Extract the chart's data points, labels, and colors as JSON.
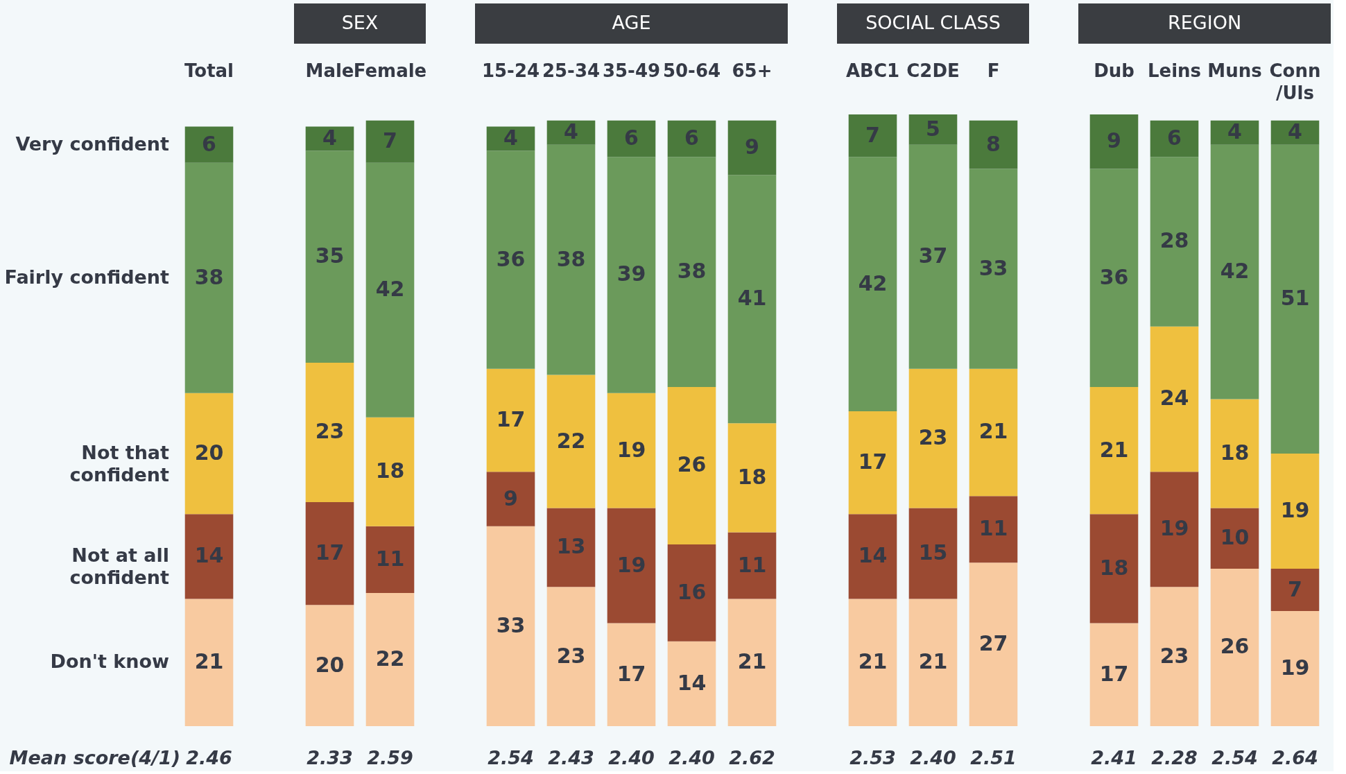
{
  "chart_data": [
    {
      "type": "bar",
      "stacked": true,
      "data_labels": true,
      "legend": "left",
      "categories": [
        "Total"
      ],
      "series": [
        {
          "name": "Don't know",
          "color": "#f8caa0",
          "values": [
            21
          ]
        },
        {
          "name": "Not at all\nconfident",
          "color": "#9b4a32",
          "values": [
            14
          ]
        },
        {
          "name": "Not that\nconfident",
          "color": "#efc03f",
          "values": [
            20
          ]
        },
        {
          "name": "Fairly confident",
          "color": "#6b9a5b",
          "values": [
            38
          ]
        },
        {
          "name": "Very confident",
          "color": "#4b7a3c",
          "values": [
            6
          ]
        }
      ],
      "annotations": [
        "Mean score(4/1)",
        "2.46"
      ]
    },
    {
      "type": "bar",
      "stacked": true,
      "data_labels": true,
      "title": "SEX",
      "categories": [
        "Male",
        "Female"
      ],
      "series": [
        {
          "color": "#f8caa0",
          "values": [
            20,
            22
          ]
        },
        {
          "color": "#9b4a32",
          "values": [
            17,
            11
          ]
        },
        {
          "color": "#efc03f",
          "values": [
            23,
            18
          ]
        },
        {
          "color": "#6b9a5b",
          "values": [
            35,
            42
          ]
        },
        {
          "color": "#4b7a3c",
          "values": [
            4,
            7
          ]
        }
      ],
      "annotations": [
        "2.33",
        "2.59"
      ]
    },
    {
      "type": "bar",
      "stacked": true,
      "data_labels": true,
      "title": "AGE",
      "categories": [
        "15-24",
        "25-34",
        "35-49",
        "50-64",
        "65+"
      ],
      "series": [
        {
          "color": "#f8caa0",
          "values": [
            33,
            23,
            17,
            14,
            21
          ]
        },
        {
          "color": "#9b4a32",
          "values": [
            9,
            13,
            19,
            16,
            11
          ]
        },
        {
          "color": "#efc03f",
          "values": [
            17,
            22,
            19,
            26,
            18
          ]
        },
        {
          "color": "#6b9a5b",
          "values": [
            36,
            38,
            39,
            38,
            41
          ]
        },
        {
          "color": "#4b7a3c",
          "values": [
            4,
            4,
            6,
            6,
            9
          ]
        }
      ],
      "annotations": [
        "2.54",
        "2.43",
        "2.40",
        "2.40",
        "2.62"
      ]
    },
    {
      "type": "bar",
      "stacked": true,
      "data_labels": true,
      "title": "SOCIAL CLASS",
      "categories": [
        "ABC1",
        "C2DE",
        "F"
      ],
      "series": [
        {
          "color": "#f8caa0",
          "values": [
            21,
            21,
            27
          ]
        },
        {
          "color": "#9b4a32",
          "values": [
            14,
            15,
            11
          ]
        },
        {
          "color": "#efc03f",
          "values": [
            17,
            23,
            21
          ]
        },
        {
          "color": "#6b9a5b",
          "values": [
            42,
            37,
            33
          ]
        },
        {
          "color": "#4b7a3c",
          "values": [
            7,
            5,
            8
          ]
        }
      ],
      "annotations": [
        "2.53",
        "2.40",
        "2.51"
      ]
    },
    {
      "type": "bar",
      "stacked": true,
      "data_labels": true,
      "title": "REGION",
      "categories": [
        "Dub",
        "Leins",
        "Muns",
        "Conn\n/Uls"
      ],
      "series": [
        {
          "color": "#f8caa0",
          "values": [
            17,
            23,
            26,
            19
          ]
        },
        {
          "color": "#9b4a32",
          "values": [
            18,
            19,
            10,
            7
          ]
        },
        {
          "color": "#efc03f",
          "values": [
            21,
            24,
            18,
            19
          ]
        },
        {
          "color": "#6b9a5b",
          "values": [
            36,
            28,
            42,
            51
          ]
        },
        {
          "color": "#4b7a3c",
          "values": [
            9,
            6,
            4,
            4
          ]
        }
      ],
      "annotations": [
        "2.41",
        "2.28",
        "2.54",
        "2.64"
      ]
    }
  ]
}
